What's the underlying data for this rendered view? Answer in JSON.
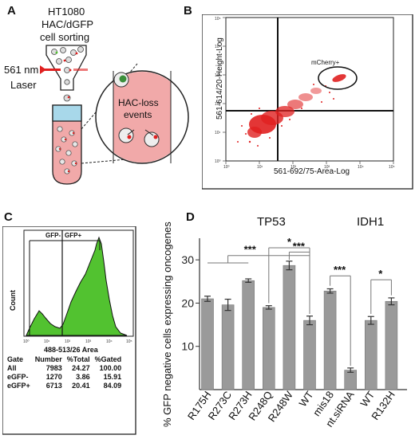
{
  "panels": {
    "a": {
      "letter": "A",
      "title_lines": [
        "HT1080",
        "HAC/dGFP",
        "cell sorting"
      ],
      "laser_nm": "561 nm",
      "laser_label": "Laser",
      "callout_lines": [
        "HAC-loss",
        "events"
      ]
    },
    "b": {
      "letter": "B",
      "gate_label": "mCherry+",
      "xlabel": "561-692/75-Area-Log",
      "ylabel": "561-614/20-Height-Log"
    },
    "c": {
      "letter": "C",
      "gate_left": "GFP-",
      "gate_right": "GFP+",
      "xlabel": "488-513/26 Area",
      "ylabel": "Count",
      "table": {
        "headers": [
          "Gate",
          "Number",
          "%Total",
          "%Gated"
        ],
        "rows": [
          [
            "All",
            "7983",
            "24.27",
            "100.00"
          ],
          [
            "eGFP-",
            "1270",
            "3.86",
            "15.91"
          ],
          [
            "eGFP+",
            "6713",
            "20.41",
            "84.09"
          ]
        ]
      }
    },
    "d": {
      "letter": "D",
      "group_tp53": "TP53",
      "group_idh1": "IDH1"
    }
  },
  "chart_data": {
    "type": "bar",
    "ylabel": "% GFP negative cells expressing oncogenes",
    "xlabel": "",
    "ylim": [
      0,
      35
    ],
    "yticks": [
      10,
      20,
      30
    ],
    "categories": [
      "R175H",
      "R273C",
      "R273H",
      "R248Q",
      "R248W",
      "WT",
      "mis18",
      "nt.siRNA",
      "WT",
      "R132H"
    ],
    "values": [
      21.0,
      19.6,
      25.2,
      19.0,
      28.7,
      16.0,
      22.8,
      4.5,
      16.0,
      20.4
    ],
    "errors": [
      0.6,
      1.3,
      0.4,
      0.4,
      1.0,
      1.0,
      0.5,
      0.5,
      0.9,
      0.8
    ],
    "significance": [
      "***",
      "*",
      "***",
      "***",
      "*"
    ],
    "bar_color": "#9a9a9a"
  },
  "colors": {
    "red": "#e02020",
    "green": "#52c230",
    "tube_pink": "#f1a9a9",
    "tube_blue": "#a8d8ea"
  }
}
